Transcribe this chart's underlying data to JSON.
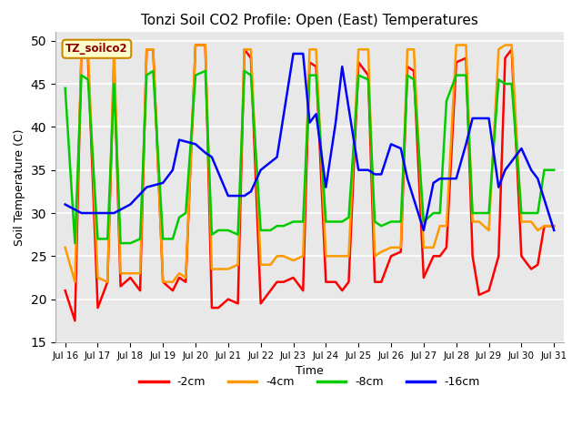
{
  "title": "Tonzi Soil CO2 Profile: Open (East) Temperatures",
  "xlabel": "Time",
  "ylabel": "Soil Temperature (C)",
  "ylim": [
    15,
    51
  ],
  "yticks": [
    15,
    20,
    25,
    30,
    35,
    40,
    45,
    50
  ],
  "legend_label": "TZ_soilco2",
  "series": {
    "-2cm": {
      "color": "#ff0000",
      "x": [
        0.0,
        0.3,
        0.5,
        0.7,
        1.0,
        1.3,
        1.5,
        1.7,
        2.0,
        2.3,
        2.5,
        2.7,
        3.0,
        3.3,
        3.5,
        3.7,
        4.0,
        4.3,
        4.5,
        4.7,
        5.0,
        5.3,
        5.5,
        5.7,
        6.0,
        6.3,
        6.5,
        6.7,
        7.0,
        7.3,
        7.5,
        7.7,
        8.0,
        8.3,
        8.5,
        8.7,
        9.0,
        9.3,
        9.5,
        9.7,
        10.0,
        10.3,
        10.5,
        10.7,
        11.0,
        11.3,
        11.5,
        11.7,
        12.0,
        12.3,
        12.5,
        12.7,
        13.0,
        13.3,
        13.5,
        13.7,
        14.0,
        14.3,
        14.5,
        14.7,
        15.0
      ],
      "y": [
        21,
        17.5,
        49,
        48,
        19,
        22,
        47.5,
        21.5,
        22.5,
        21,
        49,
        49,
        22,
        21,
        22.5,
        22,
        49.5,
        49.5,
        19,
        19,
        20,
        19.5,
        49,
        48,
        19.5,
        21,
        22,
        22,
        22.5,
        21,
        47.5,
        47,
        22,
        22,
        21,
        22,
        47.5,
        46,
        22,
        22,
        25,
        25.5,
        47,
        46.5,
        22.5,
        25,
        25,
        26,
        47.5,
        48,
        25,
        20.5,
        21,
        25,
        48,
        49,
        25,
        23.5,
        24,
        28.5,
        28.5
      ]
    },
    "-4cm": {
      "color": "#ff9900",
      "x": [
        0.0,
        0.3,
        0.5,
        0.7,
        1.0,
        1.3,
        1.5,
        1.7,
        2.0,
        2.3,
        2.5,
        2.7,
        3.0,
        3.3,
        3.5,
        3.7,
        4.0,
        4.3,
        4.5,
        4.7,
        5.0,
        5.3,
        5.5,
        5.7,
        6.0,
        6.3,
        6.5,
        6.7,
        7.0,
        7.3,
        7.5,
        7.7,
        8.0,
        8.3,
        8.5,
        8.7,
        9.0,
        9.3,
        9.5,
        9.7,
        10.0,
        10.3,
        10.5,
        10.7,
        11.0,
        11.3,
        11.5,
        11.7,
        12.0,
        12.3,
        12.5,
        12.7,
        13.0,
        13.3,
        13.5,
        13.7,
        14.0,
        14.3,
        14.5,
        14.7,
        15.0
      ],
      "y": [
        26,
        22,
        49,
        49,
        22.5,
        22,
        49.5,
        23,
        23,
        23,
        49,
        49,
        22,
        22,
        23,
        22.5,
        49.5,
        49.5,
        23.5,
        23.5,
        23.5,
        24,
        49,
        49,
        24,
        24,
        25,
        25,
        24.5,
        25,
        49,
        49,
        25,
        25,
        25,
        25,
        49,
        49,
        25,
        25.5,
        26,
        26,
        49,
        49,
        26,
        26,
        28.5,
        28.5,
        49.5,
        49.5,
        29,
        29,
        28,
        49,
        49.5,
        49.5,
        29,
        29,
        28,
        28.5,
        28.5
      ]
    },
    "-8cm": {
      "color": "#00cc00",
      "x": [
        0.0,
        0.3,
        0.5,
        0.7,
        1.0,
        1.3,
        1.5,
        1.7,
        2.0,
        2.3,
        2.5,
        2.7,
        3.0,
        3.3,
        3.5,
        3.7,
        4.0,
        4.3,
        4.5,
        4.7,
        5.0,
        5.3,
        5.5,
        5.7,
        6.0,
        6.3,
        6.5,
        6.7,
        7.0,
        7.3,
        7.5,
        7.7,
        8.0,
        8.3,
        8.5,
        8.7,
        9.0,
        9.3,
        9.5,
        9.7,
        10.0,
        10.3,
        10.5,
        10.7,
        11.0,
        11.3,
        11.5,
        11.7,
        12.0,
        12.3,
        12.5,
        12.7,
        13.0,
        13.3,
        13.5,
        13.7,
        14.0,
        14.3,
        14.5,
        14.7,
        15.0
      ],
      "y": [
        44.5,
        26.5,
        46,
        45.5,
        27,
        27,
        45,
        26.5,
        26.5,
        27,
        46,
        46.5,
        27,
        27,
        29.5,
        30,
        46,
        46.5,
        27.5,
        28,
        28,
        27.5,
        46.5,
        46,
        28,
        28,
        28.5,
        28.5,
        29,
        29,
        46,
        46,
        29,
        29,
        29,
        29.5,
        46,
        45.5,
        29,
        28.5,
        29,
        29,
        46,
        45.5,
        29,
        30,
        30,
        43,
        46,
        46,
        30,
        30,
        30,
        45.5,
        45,
        45,
        30,
        30,
        30,
        35,
        35
      ]
    },
    "-16cm": {
      "color": "#0000ff",
      "x": [
        0.0,
        0.5,
        1.0,
        1.5,
        2.0,
        2.5,
        3.0,
        3.3,
        3.5,
        4.0,
        4.3,
        4.5,
        5.0,
        5.5,
        5.7,
        6.0,
        6.5,
        7.0,
        7.3,
        7.5,
        7.7,
        8.0,
        8.3,
        8.5,
        9.0,
        9.3,
        9.5,
        9.7,
        10.0,
        10.3,
        10.5,
        11.0,
        11.3,
        11.5,
        12.0,
        12.3,
        12.5,
        13.0,
        13.3,
        13.5,
        14.0,
        14.3,
        14.5,
        15.0
      ],
      "y": [
        31,
        30,
        30,
        30,
        31,
        33,
        33.5,
        35,
        38.5,
        38,
        37,
        36.5,
        32,
        32,
        32.5,
        35,
        36.5,
        48.5,
        48.5,
        40.5,
        41.5,
        33,
        40.5,
        47,
        35,
        35,
        34.5,
        34.5,
        38,
        37.5,
        34,
        28,
        33.5,
        34,
        34,
        38,
        41,
        41,
        33,
        35,
        37.5,
        35,
        34,
        28
      ]
    }
  },
  "xticks": {
    "positions": [
      0,
      1,
      2,
      3,
      4,
      5,
      6,
      7,
      8,
      9,
      10,
      11,
      12,
      13,
      14,
      15
    ],
    "labels": [
      "Jul 16",
      "Jul 17",
      "Jul 18",
      "Jul 19",
      "Jul 20",
      "Jul 21",
      "Jul 22",
      "Jul 23",
      "Jul 24",
      "Jul 25",
      "Jul 26",
      "Jul 27",
      "Jul 28",
      "Jul 29",
      "Jul 30",
      "Jul 31"
    ]
  },
  "legend_entries": [
    {
      "label": "-2cm",
      "color": "#ff0000"
    },
    {
      "label": "-4cm",
      "color": "#ff9900"
    },
    {
      "label": "-8cm",
      "color": "#00cc00"
    },
    {
      "label": "-16cm",
      "color": "#0000ff"
    }
  ]
}
